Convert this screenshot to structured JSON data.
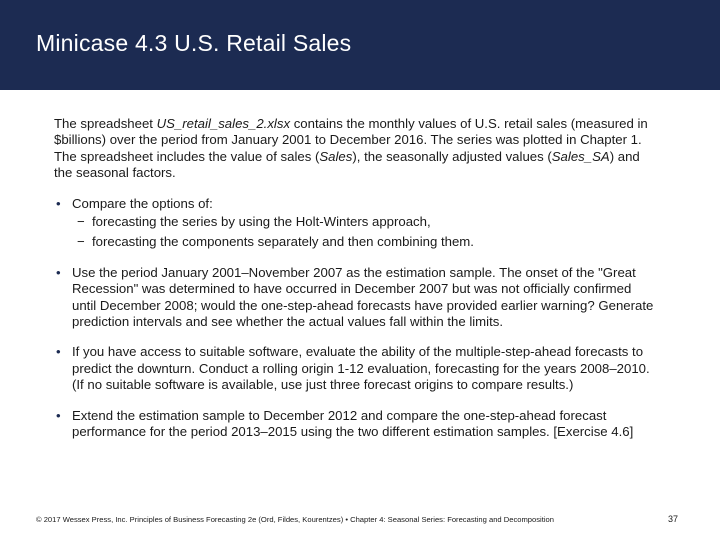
{
  "slide": {
    "title": "Minicase 4.3 U.S. Retail Sales",
    "intro": {
      "p1": "The spreadsheet ",
      "file": "US_retail_sales_2.xlsx",
      "p2": " contains the monthly values of U.S. retail sales (measured in $billions) over the period from January 2001 to December 2016. The series was plotted in Chapter 1. The spreadsheet includes the value of sales (",
      "sales": "Sales",
      "p3": "), the seasonally adjusted values (",
      "sales_sa": "Sales_SA",
      "p4": ") and the seasonal factors."
    },
    "bullet_char": "•",
    "dash_char": "−",
    "bullets": [
      {
        "text": "Compare the options of:",
        "sub": [
          "forecasting the series by using the Holt-Winters approach,",
          "forecasting the components separately and then combining them."
        ]
      },
      {
        "text": "Use the period January 2001–November 2007 as the estimation sample. The onset of the \"Great Recession\" was determined to have occurred in December 2007 but was not officially confirmed until December 2008; would the one-step-ahead forecasts have provided earlier warning? Generate prediction intervals and see whether the actual values fall within the limits."
      },
      {
        "text": "If you have access to suitable software, evaluate the ability of the multiple-step-ahead forecasts to predict the downturn. Conduct a rolling origin 1-12 evaluation, forecasting for the years 2008–2010. (If no suitable software is available, use just three forecast origins to compare results.)"
      },
      {
        "text": "Extend the estimation sample to December 2012 and compare the one-step-ahead forecast performance for the period 2013–2015 using the two different estimation samples. [Exercise 4.6]"
      }
    ],
    "footer": "© 2017 Wessex Press, Inc. Principles of Business Forecasting 2e (Ord, Fildes, Kourentzes) • Chapter 4: Seasonal Series: Forecasting and Decomposition",
    "page_number": "37"
  }
}
